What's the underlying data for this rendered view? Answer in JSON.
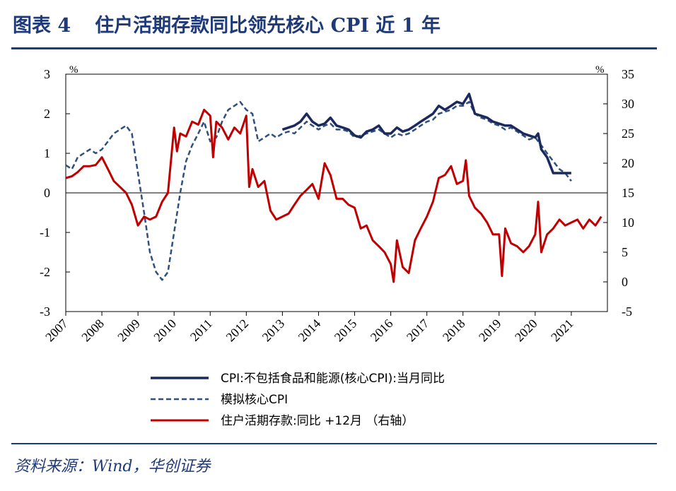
{
  "header": {
    "figure_label": "图表 4",
    "title": "住户活期存款同比领先核心 CPI 近 1 年"
  },
  "footer": {
    "source": "资料来源：Wind，华创证券"
  },
  "colors": {
    "core_cpi": "#1b2a5c",
    "simulated": "#2f4f7f",
    "deposits": "#c00000",
    "brand": "#1f3a78"
  },
  "chart_data": {
    "type": "line",
    "title": "住户活期存款同比领先核心 CPI 近 1 年",
    "left_axis": {
      "unit": "%",
      "ylim": [
        -3,
        3
      ],
      "ticks": [
        "3",
        "2",
        "1",
        "0",
        "-1",
        "-2",
        "-3"
      ]
    },
    "right_axis": {
      "unit": "%",
      "ylim": [
        -5,
        35
      ],
      "ticks": [
        "35",
        "30",
        "25",
        "20",
        "15",
        "10",
        "5",
        "0",
        "-5"
      ]
    },
    "x_ticks": [
      "2007",
      "2008",
      "2009",
      "2010",
      "2011",
      "2012",
      "2013",
      "2014",
      "2015",
      "2016",
      "2017",
      "2018",
      "2019",
      "2020",
      "2021"
    ],
    "x_range": [
      2007.0,
      2022.0
    ],
    "legend": [
      "CPI:不包括食品和能源(核心CPI):当月同比",
      "模拟核心CPI",
      "住户活期存款:同比 +12月 （右轴）"
    ],
    "series": [
      {
        "name": "CPI:不包括食品和能源(核心CPI):当月同比",
        "axis": "left",
        "style": "solid",
        "x": [
          2013.0,
          2013.17,
          2013.33,
          2013.5,
          2013.67,
          2013.83,
          2014.0,
          2014.17,
          2014.33,
          2014.5,
          2014.67,
          2014.83,
          2015.0,
          2015.17,
          2015.33,
          2015.5,
          2015.67,
          2015.83,
          2016.0,
          2016.17,
          2016.33,
          2016.5,
          2016.67,
          2016.83,
          2017.0,
          2017.17,
          2017.33,
          2017.5,
          2017.67,
          2017.83,
          2018.0,
          2018.17,
          2018.33,
          2018.5,
          2018.67,
          2018.83,
          2019.0,
          2019.17,
          2019.33,
          2019.5,
          2019.67,
          2019.83,
          2020.0,
          2020.08,
          2020.17,
          2020.33,
          2020.5,
          2020.67,
          2020.83,
          2021.0
        ],
        "values": [
          1.6,
          1.65,
          1.7,
          1.8,
          2.0,
          1.8,
          1.7,
          1.75,
          1.9,
          1.7,
          1.65,
          1.6,
          1.45,
          1.4,
          1.55,
          1.6,
          1.7,
          1.5,
          1.5,
          1.65,
          1.55,
          1.6,
          1.7,
          1.8,
          1.9,
          2.0,
          2.2,
          2.1,
          2.2,
          2.3,
          2.25,
          2.5,
          2.0,
          1.95,
          1.9,
          1.8,
          1.75,
          1.7,
          1.7,
          1.6,
          1.5,
          1.45,
          1.4,
          1.5,
          1.1,
          0.9,
          0.5,
          0.5,
          0.5,
          0.5
        ]
      },
      {
        "name": "模拟核心CPI",
        "axis": "left",
        "style": "dashed",
        "x": [
          2007.0,
          2007.17,
          2007.33,
          2007.5,
          2007.67,
          2007.83,
          2008.0,
          2008.17,
          2008.33,
          2008.5,
          2008.67,
          2008.83,
          2009.0,
          2009.17,
          2009.33,
          2009.5,
          2009.67,
          2009.83,
          2010.0,
          2010.17,
          2010.33,
          2010.5,
          2010.67,
          2010.83,
          2011.0,
          2011.17,
          2011.33,
          2011.5,
          2011.67,
          2011.83,
          2012.0,
          2012.17,
          2012.33,
          2012.5,
          2012.67,
          2012.83,
          2013.0,
          2013.17,
          2013.33,
          2013.5,
          2013.67,
          2013.83,
          2014.0,
          2014.17,
          2014.33,
          2014.5,
          2014.67,
          2014.83,
          2015.0,
          2015.17,
          2015.33,
          2015.5,
          2015.67,
          2015.83,
          2016.0,
          2016.17,
          2016.33,
          2016.5,
          2016.67,
          2016.83,
          2017.0,
          2017.17,
          2017.33,
          2017.5,
          2017.67,
          2017.83,
          2018.0,
          2018.17,
          2018.33,
          2018.5,
          2018.67,
          2018.83,
          2019.0,
          2019.17,
          2019.33,
          2019.5,
          2019.67,
          2019.83,
          2020.0,
          2020.17,
          2020.33,
          2020.5,
          2020.67,
          2020.83,
          2021.0
        ],
        "values": [
          0.7,
          0.6,
          0.9,
          1.0,
          1.1,
          1.0,
          1.1,
          1.3,
          1.5,
          1.6,
          1.7,
          1.5,
          0.5,
          -0.5,
          -1.5,
          -2.0,
          -2.2,
          -2.0,
          -1.0,
          0.0,
          0.8,
          1.2,
          1.5,
          1.8,
          1.3,
          1.4,
          1.8,
          2.1,
          2.2,
          2.3,
          2.1,
          2.0,
          1.3,
          1.4,
          1.5,
          1.4,
          1.5,
          1.55,
          1.5,
          1.65,
          1.8,
          1.7,
          1.6,
          1.7,
          1.75,
          1.6,
          1.6,
          1.55,
          1.4,
          1.45,
          1.5,
          1.55,
          1.6,
          1.5,
          1.4,
          1.5,
          1.45,
          1.5,
          1.6,
          1.7,
          1.8,
          1.85,
          2.0,
          2.05,
          2.1,
          2.2,
          2.2,
          2.3,
          2.0,
          1.9,
          1.85,
          1.75,
          1.7,
          1.6,
          1.65,
          1.55,
          1.45,
          1.35,
          1.4,
          1.2,
          1.0,
          0.8,
          0.6,
          0.5,
          0.3
        ]
      },
      {
        "name": "住户活期存款:同比 +12月 （右轴）",
        "axis": "right",
        "style": "solid",
        "x": [
          2007.0,
          2007.17,
          2007.33,
          2007.5,
          2007.67,
          2007.83,
          2008.0,
          2008.17,
          2008.33,
          2008.5,
          2008.67,
          2008.83,
          2009.0,
          2009.17,
          2009.33,
          2009.5,
          2009.67,
          2009.83,
          2010.0,
          2010.08,
          2010.17,
          2010.33,
          2010.5,
          2010.67,
          2010.83,
          2011.0,
          2011.08,
          2011.17,
          2011.33,
          2011.5,
          2011.67,
          2011.83,
          2012.0,
          2012.08,
          2012.17,
          2012.33,
          2012.5,
          2012.67,
          2012.83,
          2013.0,
          2013.17,
          2013.33,
          2013.5,
          2013.67,
          2013.83,
          2014.0,
          2014.17,
          2014.33,
          2014.5,
          2014.67,
          2014.83,
          2015.0,
          2015.17,
          2015.33,
          2015.5,
          2015.67,
          2015.83,
          2016.0,
          2016.08,
          2016.17,
          2016.33,
          2016.5,
          2016.67,
          2016.83,
          2017.0,
          2017.17,
          2017.33,
          2017.5,
          2017.67,
          2017.83,
          2018.0,
          2018.08,
          2018.17,
          2018.33,
          2018.5,
          2018.67,
          2018.83,
          2019.0,
          2019.08,
          2019.17,
          2019.33,
          2019.5,
          2019.67,
          2019.83,
          2020.0,
          2020.08,
          2020.17,
          2020.33,
          2020.5,
          2020.67,
          2020.83,
          2021.0,
          2021.17,
          2021.33,
          2021.5,
          2021.67,
          2021.83
        ],
        "values": [
          17.5,
          17.8,
          18.5,
          19.5,
          19.5,
          19.7,
          21.0,
          19.0,
          17.0,
          16.0,
          15.0,
          13.0,
          9.5,
          11.0,
          10.5,
          11.0,
          13.5,
          15.0,
          26.0,
          22.0,
          25.0,
          24.5,
          27.0,
          26.5,
          29.0,
          28.0,
          21.0,
          27.0,
          26.0,
          24.0,
          26.0,
          25.0,
          28.0,
          16.0,
          19.0,
          16.0,
          17.0,
          12.0,
          10.5,
          11.0,
          11.5,
          13.0,
          14.5,
          15.5,
          16.5,
          14.0,
          20.0,
          18.0,
          14.0,
          14.0,
          13.0,
          12.5,
          9.0,
          9.5,
          7.0,
          6.0,
          5.0,
          3.0,
          0.0,
          7.0,
          2.5,
          1.5,
          7.0,
          9.0,
          11.0,
          13.5,
          17.5,
          18.0,
          19.5,
          16.5,
          17.0,
          20.5,
          14.5,
          12.5,
          11.5,
          10.0,
          8.0,
          8.0,
          1.0,
          9.0,
          6.5,
          6.0,
          5.0,
          6.0,
          8.0,
          13.5,
          5.0,
          8.0,
          9.0,
          10.5,
          9.5,
          10.0,
          10.5,
          9.0,
          10.5,
          9.5,
          11.0
        ]
      }
    ]
  }
}
